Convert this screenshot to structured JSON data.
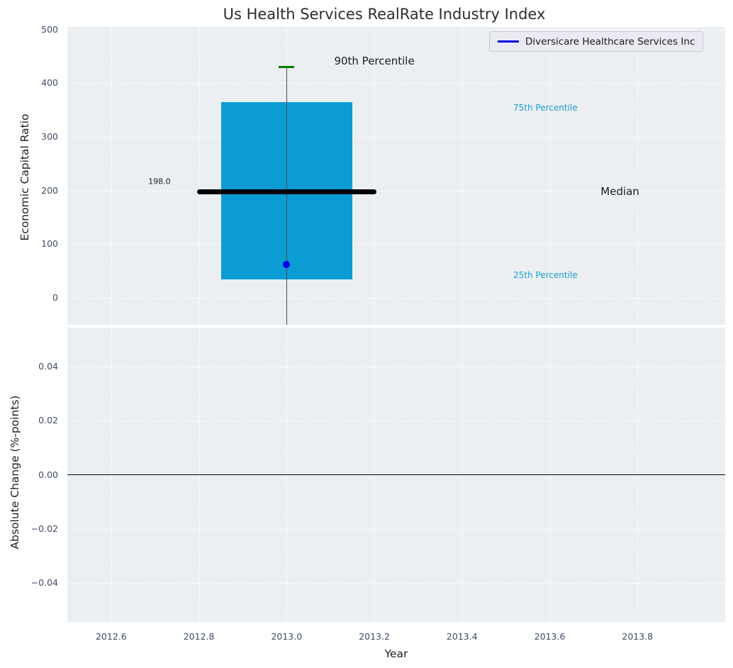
{
  "title": "Us Health Services RealRate Industry Index",
  "legend": {
    "label": "Diversicare Healthcare Services Inc"
  },
  "axes": {
    "top": {
      "ylabel": "Economic Capital Ratio"
    },
    "bottom": {
      "ylabel": "Absolute Change (%-points)",
      "xlabel": "Year"
    }
  },
  "colors": {
    "plot_bg": "#ebeff1",
    "grid": "#ffffff",
    "box_fill": "#0a9cd3",
    "median_line": "#000000",
    "whisker": "#4d4d4d",
    "cap_green": "#007d00",
    "company_dot": "#0000ee",
    "legend_line": "#0000dd",
    "legend_bg": "#eaebf2",
    "legend_border": "#c9cace",
    "tick_label": "#3e4c61",
    "axis_label": "#1f1f1f",
    "title_color": "#2d2d2d",
    "annotation_cyan": "#1a9fd4",
    "annotation_black": "#1a1a1a",
    "zero_line": "#000000"
  },
  "chart_data": [
    {
      "type": "boxplot",
      "subplot": "top",
      "title": "Us Health Services RealRate Industry Index",
      "ylabel": "Economic Capital Ratio",
      "xlim": [
        2012.5,
        2014.0
      ],
      "ylim": [
        -50,
        505
      ],
      "yticks": [
        0,
        100,
        200,
        300,
        400,
        500
      ],
      "ytick_labels": [
        "0",
        "100",
        "200",
        "300",
        "400",
        "500"
      ],
      "grid": true,
      "legend_position": "upper right",
      "box": {
        "x": 2013.0,
        "p25": 35,
        "median": 198.0,
        "p75": 365,
        "p90": 430,
        "p10_below_visible_axis": true,
        "box_half_width": 0.15,
        "median_half_width": 0.205,
        "cap_half_width": 0.018
      },
      "company_point": {
        "name": "Diversicare Healthcare Services Inc",
        "x": 2013.0,
        "y": 62
      },
      "annotations": [
        {
          "text": "90th Percentile",
          "x": 2013.2,
          "y": 442,
          "style": "black-large"
        },
        {
          "text": "75th Percentile",
          "x": 2013.59,
          "y": 355,
          "style": "cyan-small"
        },
        {
          "text": "Median",
          "x": 2013.76,
          "y": 199,
          "style": "black-large"
        },
        {
          "text": "25th Percentile",
          "x": 2013.59,
          "y": 42,
          "style": "cyan-small"
        },
        {
          "text": "198.0",
          "x": 2012.71,
          "y": 217,
          "style": "black-tiny"
        }
      ]
    },
    {
      "type": "line",
      "subplot": "bottom",
      "ylabel": "Absolute Change (%-points)",
      "xlabel": "Year",
      "xlim": [
        2012.5,
        2014.0
      ],
      "ylim": [
        -0.0545,
        0.0545
      ],
      "yticks": [
        0.04,
        0.02,
        0.0,
        -0.02,
        -0.04
      ],
      "ytick_labels": [
        "0.04",
        "0.02",
        "0.00",
        "−0.02",
        "−0.04"
      ],
      "xticks": [
        2012.6,
        2012.8,
        2013.0,
        2013.2,
        2013.4,
        2013.6,
        2013.8
      ],
      "xtick_labels": [
        "2012.6",
        "2012.8",
        "2013.0",
        "2013.2",
        "2013.4",
        "2013.6",
        "2013.8"
      ],
      "zero_line_y": 0.0,
      "grid": true,
      "series": []
    }
  ]
}
